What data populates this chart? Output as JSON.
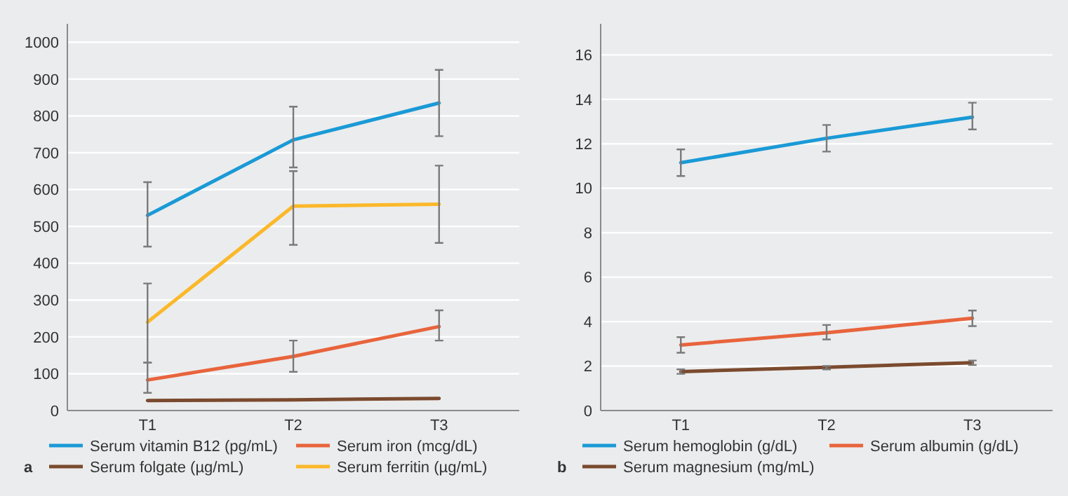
{
  "chart_data": [
    {
      "type": "line",
      "categories": [
        "T1",
        "T2",
        "T3"
      ],
      "ylim": [
        0,
        1050
      ],
      "yticks": [
        0,
        100,
        200,
        300,
        400,
        500,
        600,
        700,
        800,
        900,
        1000
      ],
      "grid": "y",
      "legend": "bottom",
      "marker": "none",
      "annotations": [
        "a"
      ],
      "series": [
        {
          "name": "Serum vitamin B12 (pg/mL)",
          "color": "#1a9ad6",
          "values": [
            530,
            735,
            835
          ],
          "errors": [
            [
              445,
              620
            ],
            [
              660,
              825
            ],
            [
              745,
              925
            ]
          ]
        },
        {
          "name": "Serum iron (mcg/dL)",
          "color": "#e8643c",
          "values": [
            83,
            147,
            228
          ],
          "errors": [
            [
              48,
              130
            ],
            [
              105,
              190
            ],
            [
              190,
              272
            ]
          ]
        },
        {
          "name": "Serum folgate (µg/mL)",
          "color": "#7b4a2e",
          "values": [
            27,
            29,
            33
          ]
        },
        {
          "name": "Serum ferritin (µg/mL)",
          "color": "#fbb829",
          "values": [
            240,
            555,
            560
          ],
          "errors": [
            [
              130,
              345
            ],
            [
              450,
              650
            ],
            [
              455,
              665
            ]
          ]
        }
      ]
    },
    {
      "type": "line",
      "categories": [
        "T1",
        "T2",
        "T3"
      ],
      "ylim": [
        0,
        17.4
      ],
      "yticks": [
        0,
        2,
        4,
        6,
        8,
        10,
        12,
        14,
        16
      ],
      "grid": "y",
      "legend": "bottom",
      "marker": "none",
      "annotations": [
        "b"
      ],
      "series": [
        {
          "name": "Serum hemoglobin (g/dL)",
          "color": "#1a9ad6",
          "values": [
            11.15,
            12.25,
            13.2
          ],
          "errors": [
            [
              10.55,
              11.75
            ],
            [
              11.65,
              12.85
            ],
            [
              12.65,
              13.85
            ]
          ]
        },
        {
          "name": "Serum albumin (g/dL)",
          "color": "#e8643c",
          "values": [
            2.95,
            3.5,
            4.15
          ],
          "errors": [
            [
              2.6,
              3.3
            ],
            [
              3.2,
              3.85
            ],
            [
              3.8,
              4.5
            ]
          ]
        },
        {
          "name": "Serum magnesium (mg/mL)",
          "color": "#7b4a2e",
          "values": [
            1.75,
            1.95,
            2.15
          ],
          "errors": [
            [
              1.65,
              1.85
            ],
            [
              1.85,
              2.0
            ],
            [
              2.05,
              2.25
            ]
          ]
        }
      ]
    }
  ]
}
